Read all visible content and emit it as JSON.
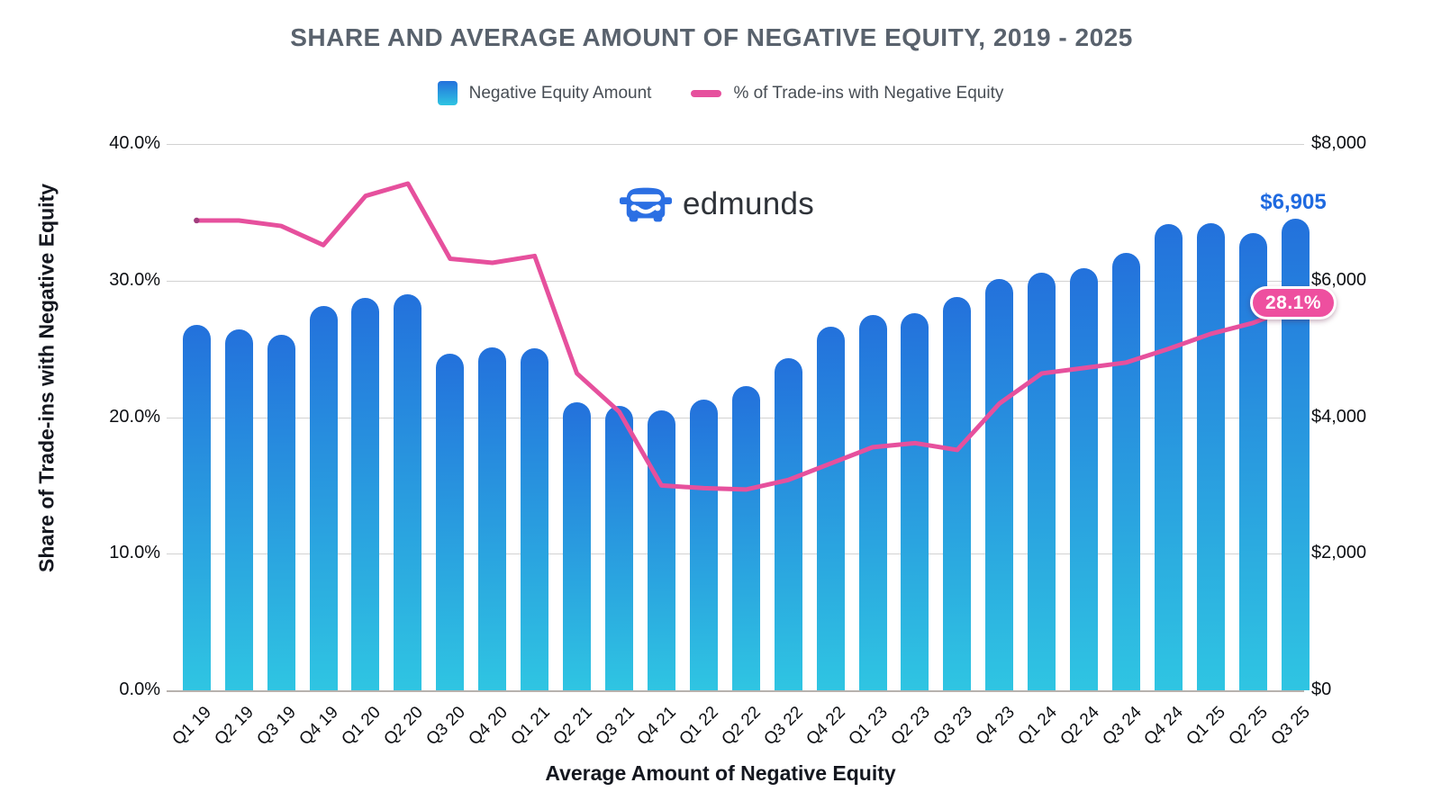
{
  "title": "SHARE AND AVERAGE AMOUNT OF NEGATIVE EQUITY, 2019 - 2025",
  "legend": [
    {
      "label": "Negative Equity Amount",
      "swatch": "bar-gradient-swatch"
    },
    {
      "label": "% of Trade-ins with Negative Equity",
      "swatch": "line-swatch"
    }
  ],
  "logo": {
    "text": "edmunds",
    "icon": "edmunds-car-icon"
  },
  "axes": {
    "left": {
      "title": "Share of Trade-ins with Negative Equity",
      "ticks": [
        "40.0%",
        "30.0%",
        "20.0%",
        "10.0%",
        "0.0%"
      ]
    },
    "right": {
      "ticks": [
        "$8,000",
        "$6,000",
        "$4,000",
        "$2,000",
        "$0"
      ]
    },
    "bottom": {
      "title": "Average Amount of Negative Equity"
    }
  },
  "annotations": {
    "amount_label": "$6,905",
    "share_label": "28.1%"
  },
  "colors": {
    "bar_top": "#2371dc",
    "bar_bottom": "#2fc5e2",
    "line": "#e6509d",
    "line_start_dot": "#a23d7e",
    "pill_bg": "#ee4f9f",
    "annotation_blue": "#1f6ae0",
    "title_gray": "#59626d",
    "logo_blue": "#2b6fe3"
  },
  "chart_data": {
    "type": "bar+line combo",
    "title": "SHARE AND AVERAGE AMOUNT OF NEGATIVE EQUITY, 2019 - 2025",
    "xlabel": "Average Amount of Negative Equity",
    "left_axis_label": "Share of Trade-ins with Negative Equity",
    "left_ylim": [
      0,
      40
    ],
    "right_ylim": [
      0,
      8000
    ],
    "grid": "horizontal",
    "legend_position": "top-center",
    "categories": [
      "Q1 19",
      "Q2 19",
      "Q3 19",
      "Q4 19",
      "Q1 20",
      "Q2 20",
      "Q3 20",
      "Q4 20",
      "Q1 21",
      "Q2 21",
      "Q3 21",
      "Q4 21",
      "Q1 22",
      "Q2 22",
      "Q3 22",
      "Q4 22",
      "Q1 23",
      "Q2 23",
      "Q3 23",
      "Q4 23",
      "Q1 24",
      "Q2 24",
      "Q3 24",
      "Q4 24",
      "Q1 25",
      "Q2 25",
      "Q3 25"
    ],
    "series": [
      {
        "name": "Negative Equity Amount",
        "type": "bar",
        "axis": "right",
        "unit": "USD",
        "values": [
          5350,
          5290,
          5210,
          5625,
          5740,
          5800,
          4935,
          5020,
          5010,
          4220,
          4165,
          4105,
          4255,
          4450,
          4860,
          5320,
          5495,
          5520,
          5760,
          6025,
          6115,
          6180,
          6400,
          6830,
          6840,
          6700,
          6905
        ]
      },
      {
        "name": "% of Trade-ins with Negative Equity",
        "type": "line",
        "axis": "left",
        "unit": "percent",
        "values": [
          34.4,
          34.4,
          34.0,
          32.6,
          36.2,
          37.1,
          31.6,
          31.3,
          31.8,
          23.2,
          20.4,
          15.0,
          14.8,
          14.7,
          15.4,
          16.6,
          17.8,
          18.1,
          17.6,
          21.0,
          23.2,
          23.6,
          24.0,
          25.0,
          26.1,
          26.9,
          28.1
        ]
      }
    ],
    "annotations": [
      {
        "target": "last bar Q3 25",
        "text": "$6,905"
      },
      {
        "target": "last line point Q3 25",
        "text": "28.1%"
      }
    ]
  }
}
